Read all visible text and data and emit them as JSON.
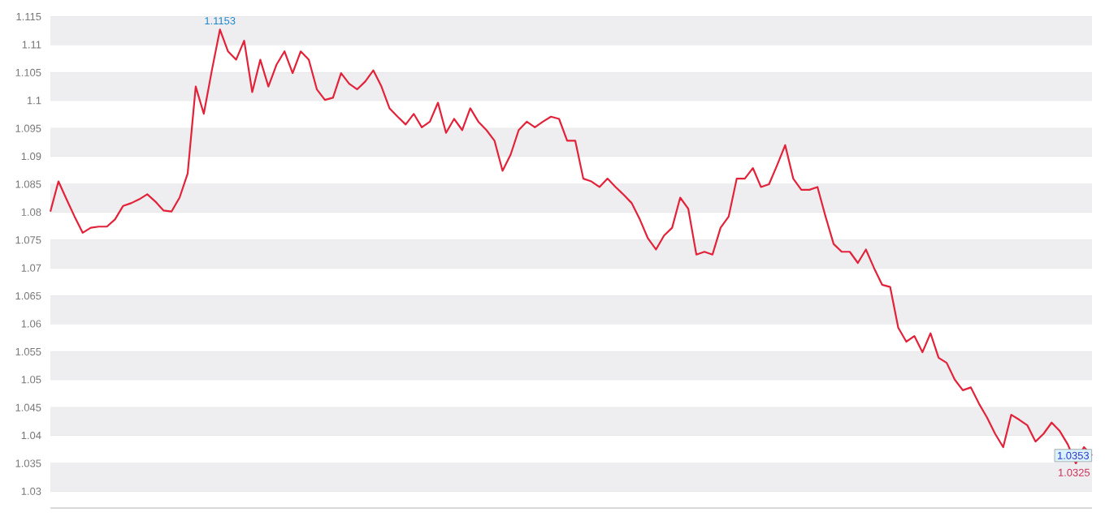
{
  "chart_data": {
    "type": "line",
    "color": "#e3223a",
    "grid": "y",
    "tick_labels": "y",
    "categories": [
      null,
      null,
      null,
      null,
      null,
      null,
      null,
      null,
      null,
      null,
      null,
      null,
      null,
      null,
      null,
      null,
      null,
      null,
      null,
      null,
      null,
      null,
      null,
      null,
      null,
      null,
      null,
      null,
      null,
      null,
      null,
      null,
      null,
      null,
      null,
      null,
      null,
      null,
      null,
      null,
      null,
      null,
      null,
      null,
      null,
      null,
      null,
      null,
      null,
      null,
      null,
      null,
      null,
      null,
      null,
      null,
      null,
      null,
      null,
      null,
      null,
      null,
      null,
      null,
      null,
      null,
      null,
      null,
      null,
      null,
      null,
      null,
      null,
      null,
      null,
      null,
      null,
      null,
      null,
      null,
      null,
      null,
      null,
      null,
      null,
      null,
      null,
      null,
      null,
      null,
      null,
      null,
      null,
      null,
      null,
      null,
      null,
      null,
      null,
      null,
      null,
      null,
      null,
      null,
      null,
      null,
      null,
      null,
      null,
      null,
      null,
      null,
      null,
      null,
      null,
      null,
      null,
      null,
      null,
      null,
      null,
      null,
      null,
      null,
      null,
      null,
      null,
      null,
      null,
      null
    ],
    "values": [
      1.0801,
      1.0855,
      1.0823,
      1.0792,
      1.0763,
      1.0772,
      1.0774,
      1.0774,
      1.0787,
      1.0811,
      1.0816,
      1.0823,
      1.0832,
      1.0819,
      1.0803,
      1.0801,
      1.0826,
      1.0869,
      1.1025,
      1.0976,
      1.1054,
      1.1127,
      1.1088,
      1.1073,
      1.1107,
      1.1015,
      1.1073,
      1.1025,
      1.1064,
      1.1088,
      1.1049,
      1.1088,
      1.1073,
      1.102,
      1.1001,
      1.1005,
      1.1049,
      1.103,
      1.102,
      1.1034,
      1.1054,
      1.1025,
      1.0986,
      1.0971,
      1.0957,
      1.0976,
      1.0952,
      1.0962,
      1.0996,
      1.0942,
      1.0967,
      1.0947,
      1.0986,
      1.0962,
      1.0947,
      1.0928,
      1.0874,
      1.0903,
      1.0947,
      1.0962,
      1.0952,
      1.0962,
      1.0971,
      1.0967,
      1.0928,
      1.0928,
      1.086,
      1.0855,
      1.0845,
      1.086,
      1.0845,
      1.0831,
      1.0816,
      1.0787,
      1.0753,
      1.0733,
      1.0758,
      1.0772,
      1.0826,
      1.0806,
      1.0724,
      1.0729,
      1.0724,
      1.0772,
      1.0792,
      1.086,
      1.086,
      1.0879,
      1.0845,
      1.085,
      1.0884,
      1.092,
      1.086,
      1.084,
      1.084,
      1.0845,
      1.0792,
      1.0743,
      1.0729,
      1.0729,
      1.0709,
      1.0733,
      1.07,
      1.067,
      1.0666,
      1.0593,
      1.0568,
      1.0578,
      1.0549,
      1.0583,
      1.0539,
      1.053,
      1.05,
      1.0481,
      1.0486,
      1.0457,
      1.0432,
      1.0403,
      1.0379,
      1.0437,
      1.0428,
      1.0418,
      1.0389,
      1.0403,
      1.0423,
      1.0408,
      1.0384,
      1.035,
      1.0379,
      1.0364
    ],
    "ylim": [
      1.027,
      1.115
    ],
    "yticks": [
      1.03,
      1.035,
      1.04,
      1.045,
      1.05,
      1.055,
      1.06,
      1.065,
      1.07,
      1.075,
      1.08,
      1.085,
      1.09,
      1.095,
      1.1,
      1.105,
      1.11,
      1.115
    ],
    "annotations": [
      "1.1153",
      "1.0353",
      "1.0325"
    ]
  }
}
